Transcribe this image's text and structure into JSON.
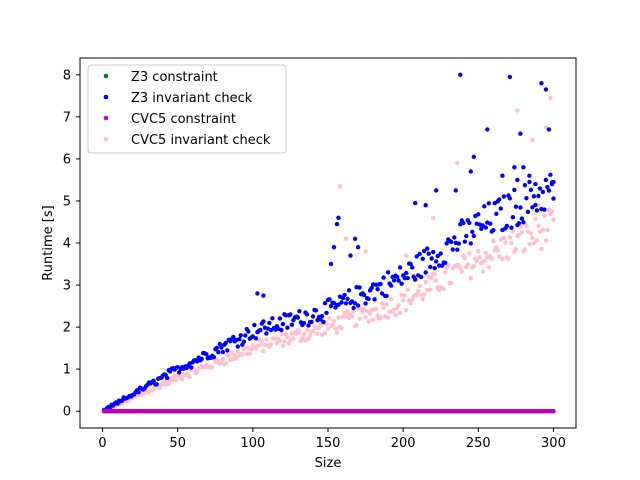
{
  "chart_data": {
    "type": "scatter",
    "xlabel": "Size",
    "ylabel": "Runtime [s]",
    "xlim": [
      -15,
      315
    ],
    "ylim": [
      -0.4,
      8.4
    ],
    "xticks": [
      0,
      50,
      100,
      150,
      200,
      250,
      300
    ],
    "yticks": [
      0,
      1,
      2,
      3,
      4,
      5,
      6,
      7,
      8
    ],
    "legend_position": "top-left",
    "series": [
      {
        "name": "Z3 constraint",
        "color": "#008000",
        "trend": {
          "kind": "flat",
          "x_range": [
            1,
            300
          ],
          "y": 0.0,
          "noise": 0.0
        }
      },
      {
        "name": "Z3 invariant check",
        "color": "#0000ff",
        "trend": {
          "kind": "piecewise",
          "x_range": [
            1,
            300
          ],
          "knots": [
            [
              0,
              0.0
            ],
            [
              50,
              1.0
            ],
            [
              100,
              1.9
            ],
            [
              150,
              2.4
            ],
            [
              200,
              3.2
            ],
            [
              250,
              4.4
            ],
            [
              300,
              5.3
            ]
          ],
          "noise": 0.12
        },
        "outliers": [
          [
            103,
            2.8
          ],
          [
            107,
            2.75
          ],
          [
            152,
            3.5
          ],
          [
            154,
            3.9
          ],
          [
            156,
            4.45
          ],
          [
            157,
            4.6
          ],
          [
            165,
            3.7
          ],
          [
            168,
            4.1
          ],
          [
            170,
            3.9
          ],
          [
            208,
            4.95
          ],
          [
            215,
            4.9
          ],
          [
            222,
            5.25
          ],
          [
            235,
            5.25
          ],
          [
            238,
            8.0
          ],
          [
            245,
            5.7
          ],
          [
            247,
            6.05
          ],
          [
            256,
            6.7
          ],
          [
            266,
            5.6
          ],
          [
            271,
            7.95
          ],
          [
            274,
            5.8
          ],
          [
            276,
            5.5
          ],
          [
            278,
            6.6
          ],
          [
            280,
            5.8
          ],
          [
            284,
            5.6
          ],
          [
            288,
            5.4
          ],
          [
            292,
            7.8
          ],
          [
            295,
            7.65
          ],
          [
            297,
            6.7
          ],
          [
            299,
            5.4
          ],
          [
            300,
            5.45
          ]
        ]
      },
      {
        "name": "CVC5 constraint",
        "color": "#bf00bf",
        "trend": {
          "kind": "flat",
          "x_range": [
            1,
            300
          ],
          "y": 0.0,
          "noise": 0.0
        }
      },
      {
        "name": "CVC5 invariant check",
        "color": "#ffc0cb",
        "trend": {
          "kind": "piecewise",
          "x_range": [
            1,
            300
          ],
          "knots": [
            [
              0,
              0.0
            ],
            [
              50,
              0.8
            ],
            [
              100,
              1.5
            ],
            [
              150,
              2.0
            ],
            [
              200,
              2.6
            ],
            [
              250,
              3.6
            ],
            [
              300,
              4.4
            ]
          ],
          "noise": 0.12
        },
        "outliers": [
          [
            158,
            5.35
          ],
          [
            162,
            4.1
          ],
          [
            175,
            3.8
          ],
          [
            202,
            3.7
          ],
          [
            220,
            4.6
          ],
          [
            236,
            5.9
          ],
          [
            276,
            7.15
          ],
          [
            286,
            6.45
          ],
          [
            295,
            6.75
          ],
          [
            298,
            7.45
          ],
          [
            290,
            4.9
          ],
          [
            270,
            5.1
          ]
        ]
      }
    ]
  }
}
